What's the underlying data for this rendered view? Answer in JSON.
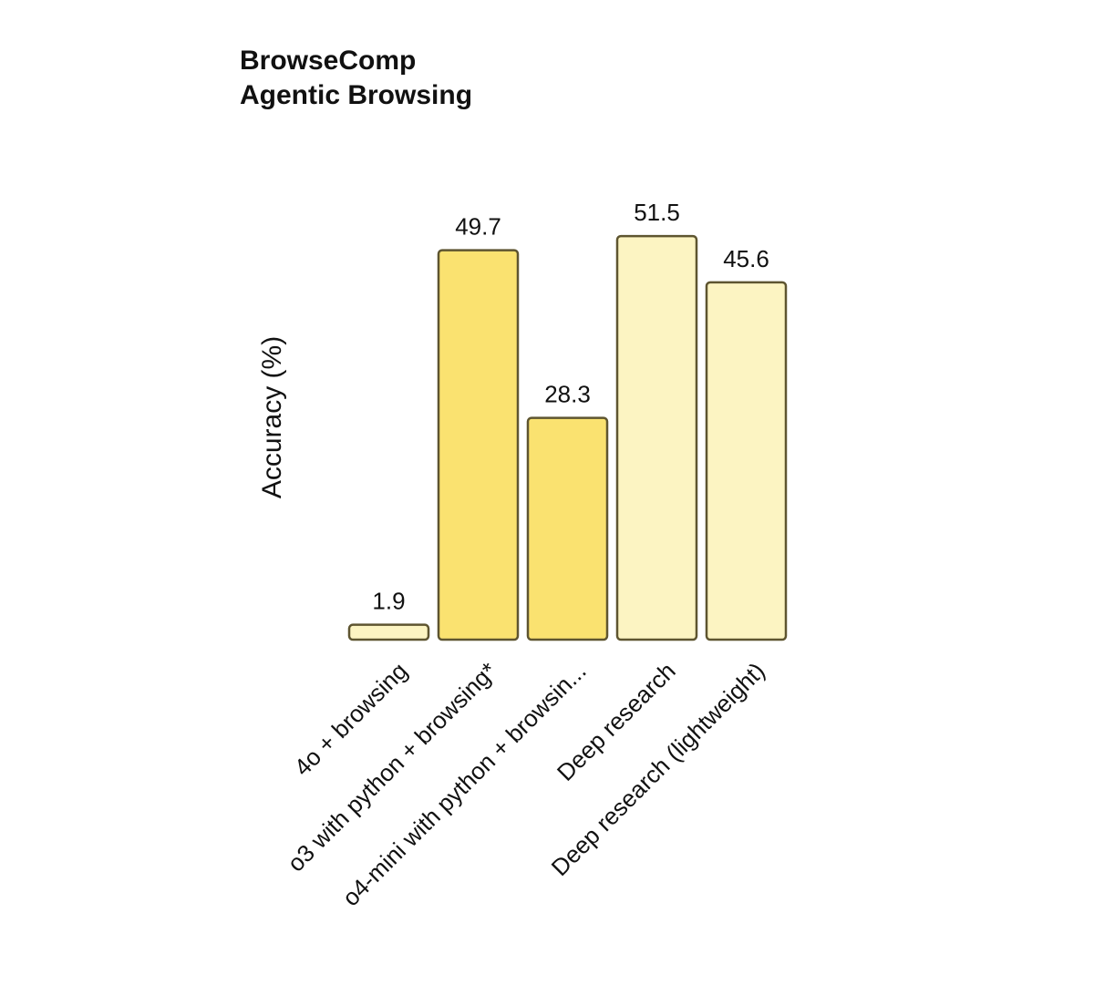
{
  "chart_data": {
    "type": "bar",
    "title": "BrowseComp",
    "subtitle": "Agentic Browsing",
    "xlabel": "",
    "ylabel": "Accuracy (%)",
    "ylim": [
      0,
      55
    ],
    "grid": false,
    "categories": [
      "4o + browsing",
      "o3 with python + browsing*",
      "o4-mini with python + browsin...",
      "Deep research",
      "Deep research (lightweight)"
    ],
    "values": [
      1.9,
      49.7,
      28.3,
      51.5,
      45.6
    ],
    "value_labels": [
      "1.9",
      "49.7",
      "28.3",
      "51.5",
      "45.6"
    ],
    "bar_colors": [
      "#FCF4C2",
      "#FAE270",
      "#FAE270",
      "#FCF4C2",
      "#FCF4C2"
    ],
    "bar_outline_color": "#5E5530"
  }
}
